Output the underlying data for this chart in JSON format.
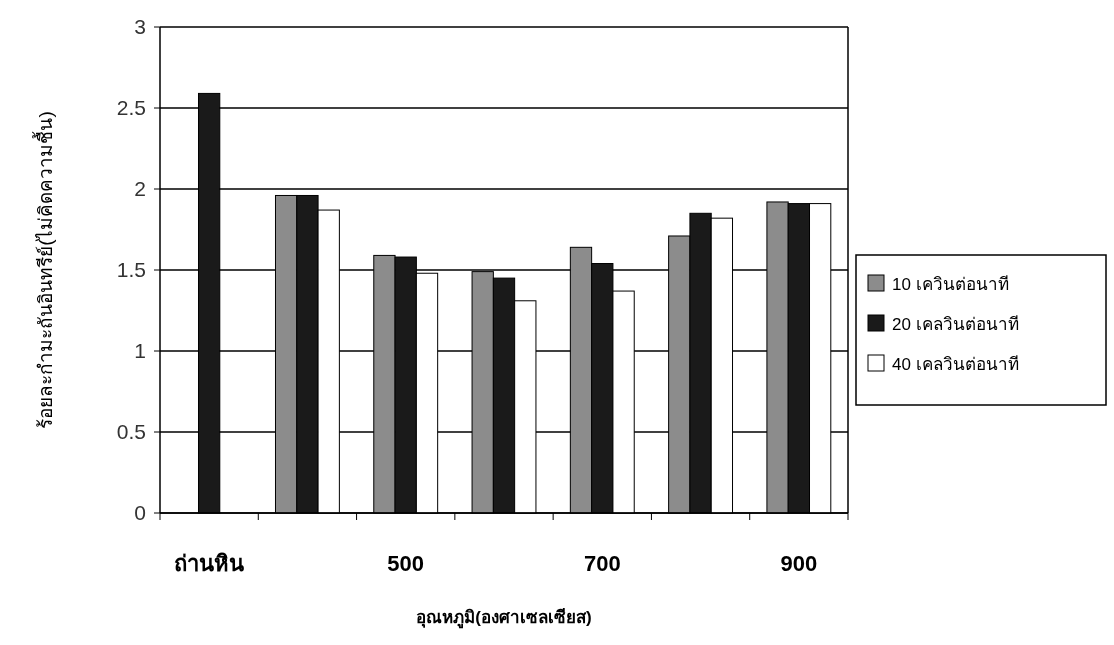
{
  "chart_data": {
    "type": "bar",
    "xlabel": "อุณหภูมิ(องศาเซลเซียส)",
    "ylabel": "ร้อยละกำมะถันอินทรีย์(ไม่คิดความชื้น)",
    "categories": [
      "ถ่านหิน",
      null,
      "500",
      null,
      "700",
      null,
      "900"
    ],
    "series": [
      {
        "name": "10 เควินต่อนาที",
        "color": "#8c8c8c",
        "values": [
          null,
          1.96,
          1.59,
          1.49,
          1.64,
          1.71,
          1.92
        ]
      },
      {
        "name": "20 เคลวินต่อนาที",
        "color": "#1a1a1a",
        "values": [
          2.59,
          1.96,
          1.58,
          1.45,
          1.54,
          1.85,
          1.91
        ]
      },
      {
        "name": "40 เคลวินต่อนาที",
        "color": "#ffffff",
        "values": [
          null,
          1.87,
          1.48,
          1.31,
          1.37,
          1.82,
          1.91
        ]
      }
    ],
    "ylim": [
      0,
      3
    ],
    "yticks": [
      0,
      0.5,
      1,
      1.5,
      2,
      2.5,
      3
    ],
    "grid": "y",
    "legend": "right"
  }
}
